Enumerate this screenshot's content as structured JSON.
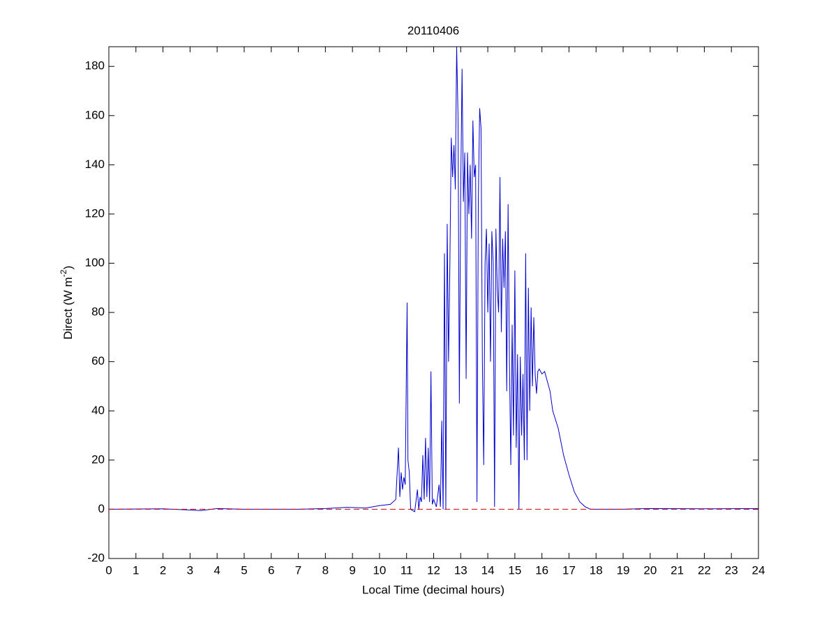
{
  "chart_data": {
    "type": "line",
    "title": "20110406",
    "xlabel": "Local Time (decimal hours)",
    "ylabel": {
      "text": "Direct (W m",
      "sup": "-2",
      "tail": ")"
    },
    "x": [
      0,
      2,
      3.4,
      4,
      5,
      7,
      8,
      8.8,
      9.5,
      10,
      10.4,
      10.6,
      10.7,
      10.75,
      10.8,
      10.85,
      10.9,
      10.95,
      11.0,
      11.02,
      11.05,
      11.1,
      11.15,
      11.3,
      11.4,
      11.45,
      11.5,
      11.55,
      11.6,
      11.65,
      11.7,
      11.75,
      11.8,
      11.85,
      11.9,
      11.95,
      12.0,
      12.1,
      12.2,
      12.25,
      12.3,
      12.35,
      12.4,
      12.45,
      12.5,
      12.55,
      12.6,
      12.65,
      12.7,
      12.75,
      12.8,
      12.85,
      12.9,
      12.95,
      13.0,
      13.05,
      13.1,
      13.15,
      13.2,
      13.25,
      13.3,
      13.35,
      13.4,
      13.45,
      13.5,
      13.55,
      13.6,
      13.65,
      13.7,
      13.75,
      13.8,
      13.85,
      13.9,
      13.95,
      14.0,
      14.05,
      14.1,
      14.15,
      14.2,
      14.25,
      14.3,
      14.35,
      14.4,
      14.45,
      14.5,
      14.55,
      14.6,
      14.65,
      14.7,
      14.75,
      14.8,
      14.85,
      14.9,
      14.95,
      15.0,
      15.05,
      15.1,
      15.15,
      15.2,
      15.25,
      15.3,
      15.35,
      15.4,
      15.45,
      15.5,
      15.55,
      15.6,
      15.65,
      15.7,
      15.75,
      15.8,
      15.85,
      15.9,
      16.0,
      16.1,
      16.2,
      16.3,
      16.4,
      16.6,
      16.8,
      17.0,
      17.2,
      17.4,
      17.6,
      17.8,
      18,
      19,
      19.5,
      20,
      22,
      24
    ],
    "series": [
      {
        "name": "Direct",
        "color": "#0000cc",
        "values": [
          0,
          0.2,
          -0.5,
          0.3,
          0,
          0,
          0.3,
          0.8,
          0.5,
          1.5,
          2,
          4,
          25,
          5,
          15,
          8,
          13,
          10,
          64,
          84,
          20,
          15,
          0,
          -1,
          8,
          0,
          5,
          3,
          22,
          4,
          29,
          5,
          25,
          3,
          56,
          2,
          4,
          1,
          10,
          1,
          36,
          0,
          104,
          0,
          116,
          60,
          100,
          151,
          135,
          148,
          130,
          188,
          160,
          43,
          130,
          179,
          125,
          145,
          53,
          145,
          120,
          140,
          110,
          158,
          135,
          140,
          3,
          125,
          163,
          155,
          60,
          18,
          100,
          114,
          80,
          108,
          60,
          113,
          100,
          1,
          114,
          90,
          80,
          135,
          72,
          110,
          90,
          113,
          48,
          124,
          60,
          18,
          75,
          30,
          97,
          25,
          63,
          0,
          62,
          30,
          55,
          20,
          104,
          20,
          90,
          40,
          82,
          50,
          78,
          55,
          47,
          56,
          57,
          55,
          56,
          52,
          48,
          40,
          33,
          22,
          14,
          7,
          3,
          1,
          0,
          0,
          0,
          0.2,
          0.3,
          0.2,
          0.3
        ]
      }
    ],
    "hline": {
      "value": 0,
      "color": "#cc0000"
    },
    "xlim": [
      0,
      24
    ],
    "xticks": [
      0,
      1,
      2,
      3,
      4,
      5,
      6,
      7,
      8,
      9,
      10,
      11,
      12,
      13,
      14,
      15,
      16,
      17,
      18,
      19,
      20,
      21,
      22,
      23,
      24
    ],
    "ylim": [
      -20,
      188
    ],
    "yticks": [
      -20,
      0,
      20,
      40,
      60,
      80,
      100,
      120,
      140,
      160,
      180
    ]
  }
}
